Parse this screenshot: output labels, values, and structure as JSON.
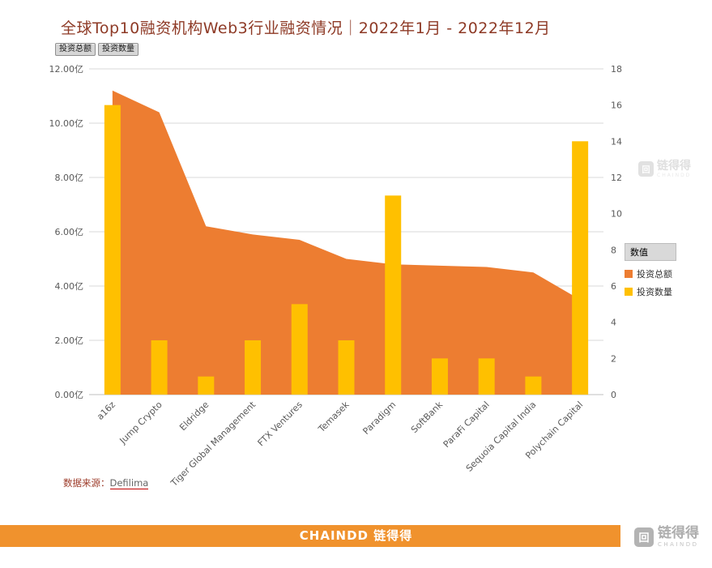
{
  "title": "全球Top10融资机构Web3行业融资情况｜2022年1月 - 2022年12月",
  "filters": {
    "total_label": "投资总额",
    "count_label": "投资数量"
  },
  "legend": {
    "header": "数值",
    "items": [
      {
        "label": "投资总额",
        "color": "#ED7D31"
      },
      {
        "label": "投资数量",
        "color": "#FFC000"
      }
    ]
  },
  "source": {
    "prefix": "数据来源：",
    "link": "Defilima"
  },
  "footer": {
    "brand": "CHAINDD 链得得"
  },
  "corner_logo": {
    "icon_glyph": "回",
    "name": "链得得",
    "sub": "CHAINDD"
  },
  "watermark": {
    "icon_glyph": "回",
    "name": "链得得",
    "sub": "CHAINDD"
  },
  "chart_data": {
    "type": "combo",
    "title": "全球Top10融资机构Web3行业融资情况｜2022年1月 - 2022年12月",
    "categories": [
      "a16z",
      "Jump Crypto",
      "Eldridge",
      "Tiger Global Management",
      "FTX Ventures",
      "Temasek",
      "Paradigm",
      "SoftBank",
      "ParaFi Capital",
      "Sequoia Capital India",
      "Polychain Capital"
    ],
    "series": [
      {
        "name": "投资总额",
        "type": "area",
        "axis": "left",
        "color": "#ED7D31",
        "unit": "亿",
        "values": [
          11.2,
          10.4,
          6.2,
          5.9,
          5.7,
          5.0,
          4.8,
          4.75,
          4.7,
          4.5,
          3.5
        ]
      },
      {
        "name": "投资数量",
        "type": "bar",
        "axis": "right",
        "color": "#FFC000",
        "values": [
          16,
          3,
          1,
          3,
          5,
          3,
          11,
          2,
          2,
          1,
          14
        ]
      }
    ],
    "left_axis": {
      "min": 0,
      "max": 12,
      "ticks": [
        "0.00亿",
        "2.00亿",
        "4.00亿",
        "6.00亿",
        "8.00亿",
        "10.00亿",
        "12.00亿"
      ]
    },
    "right_axis": {
      "min": 0,
      "max": 18,
      "ticks": [
        "0",
        "2",
        "4",
        "6",
        "8",
        "10",
        "12",
        "14",
        "16",
        "18"
      ]
    },
    "grid": true,
    "legend_position": "right"
  }
}
